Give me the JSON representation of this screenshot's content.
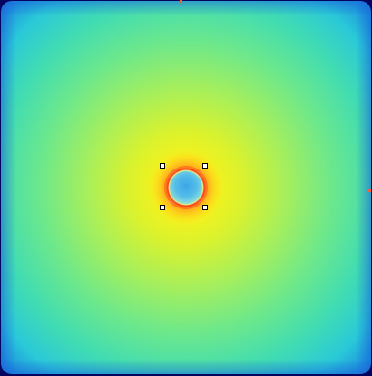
{
  "view": {
    "colormap": "jet",
    "background_color": "#03045e",
    "field_color_edge": "#2fd7c6",
    "field_color_mid": "#9ef06a",
    "field_color_hot": "#f2f21a",
    "halo_color": "#ff9a1a",
    "ring_color": "#ff4a1a",
    "spot_core_color": "#4bb4e8"
  },
  "selection": {
    "shape": "rectangle",
    "handle_color": "#ffffff",
    "handles": [
      "top-left",
      "top-right",
      "bottom-left",
      "bottom-right"
    ]
  }
}
